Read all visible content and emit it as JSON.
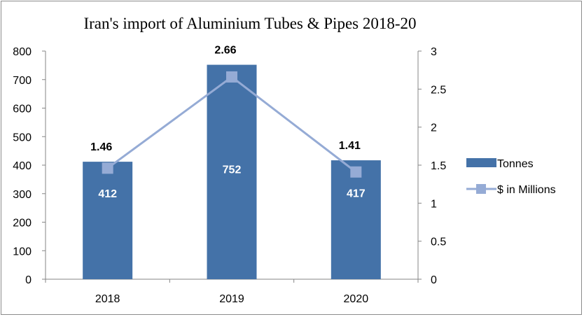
{
  "chart_data": {
    "type": "bar",
    "title": "Iran's import of Aluminium Tubes & Pipes 2018-20",
    "categories": [
      "2018",
      "2019",
      "2020"
    ],
    "series": [
      {
        "name": "Tonnes",
        "kind": "bar",
        "axis": "left",
        "values": [
          412,
          752,
          417
        ],
        "color": "#4472a8"
      },
      {
        "name": "$ in Millions",
        "kind": "line",
        "axis": "right",
        "values": [
          1.46,
          2.66,
          1.41
        ],
        "color": "#95abd5"
      }
    ],
    "left_axis": {
      "ylim": [
        0,
        800
      ],
      "ticks": [
        "0",
        "100",
        "200",
        "300",
        "400",
        "500",
        "600",
        "700",
        "800"
      ]
    },
    "right_axis": {
      "ylim": [
        0,
        3
      ],
      "ticks": [
        "0",
        "0.5",
        "1",
        "1.5",
        "2",
        "2.5",
        "3"
      ]
    },
    "bar_labels": [
      "412",
      "752",
      "417"
    ],
    "line_labels": [
      "1.46",
      "2.66",
      "1.41"
    ],
    "legend_position": "right",
    "grid": false
  }
}
